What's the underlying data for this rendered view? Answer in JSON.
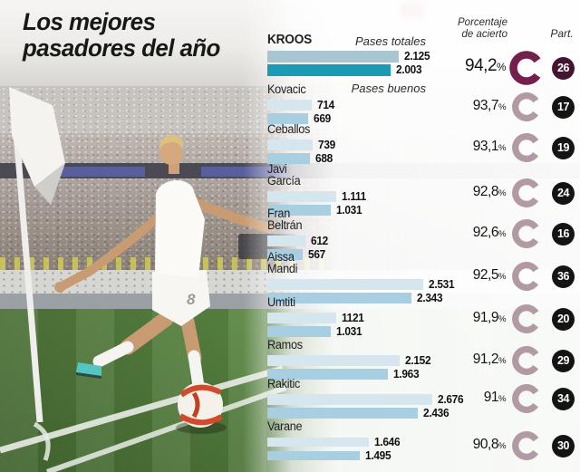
{
  "title": {
    "line1": "Los mejores",
    "line2": "pasadores del año"
  },
  "headers": {
    "pases_totales": "Pases totales",
    "pases_buenos": "Pases buenos",
    "porcentaje_line1": "Porcentaje",
    "porcentaje_line2": "de acierto",
    "part": "Part."
  },
  "colors": {
    "bar_total": "#d5e6ee",
    "bar_good": "#a7cfe1",
    "bar_total_top": "#a8c6d1",
    "bar_good_top": "#1b9ab6",
    "donut": "#b29aa5",
    "donut_top": "#73204d",
    "badge": "#151414",
    "badge_top": "#451430"
  },
  "chart_data": {
    "type": "bar",
    "orientation": "horizontal",
    "series_labels": [
      "Pases totales",
      "Pases buenos"
    ],
    "percent_sign": "%",
    "players": [
      {
        "name_lines": [
          "KROOS"
        ],
        "total": 2125,
        "total_label": "2.125",
        "good": 2003,
        "good_label": "2.003",
        "accuracy_label": "94,2",
        "matches": "26",
        "highlight": true
      },
      {
        "name_lines": [
          "Kovacic"
        ],
        "total": 714,
        "total_label": "714",
        "good": 669,
        "good_label": "669",
        "accuracy_label": "93,7",
        "matches": "17",
        "highlight": false
      },
      {
        "name_lines": [
          "Ceballos"
        ],
        "total": 739,
        "total_label": "739",
        "good": 688,
        "good_label": "688",
        "accuracy_label": "93,1",
        "matches": "19",
        "highlight": false
      },
      {
        "name_lines": [
          "Javi",
          "García"
        ],
        "total": 1111,
        "total_label": "1.111",
        "good": 1031,
        "good_label": "1.031",
        "accuracy_label": "92,8",
        "matches": "24",
        "highlight": false
      },
      {
        "name_lines": [
          "Fran",
          "Beltrán"
        ],
        "total": 612,
        "total_label": "612",
        "good": 567,
        "good_label": "567",
        "accuracy_label": "92,6",
        "matches": "16",
        "highlight": false
      },
      {
        "name_lines": [
          "Aissa",
          "Mandi"
        ],
        "total": 2531,
        "total_label": "2.531",
        "good": 2343,
        "good_label": "2.343",
        "accuracy_label": "92,5",
        "matches": "36",
        "highlight": false
      },
      {
        "name_lines": [
          "Umtiti"
        ],
        "total": 1121,
        "total_label": "1121",
        "good": 1031,
        "good_label": "1.031",
        "accuracy_label": "91,9",
        "matches": "20",
        "highlight": false
      },
      {
        "name_lines": [
          "Ramos"
        ],
        "total": 2152,
        "total_label": "2.152",
        "good": 1963,
        "good_label": "1.963",
        "accuracy_label": "91,2",
        "matches": "29",
        "highlight": false
      },
      {
        "name_lines": [
          "Rakitic"
        ],
        "total": 2676,
        "total_label": "2.676",
        "good": 2436,
        "good_label": "2.436",
        "accuracy_label": "91",
        "matches": "34",
        "highlight": false
      },
      {
        "name_lines": [
          "Varane"
        ],
        "total": 1646,
        "total_label": "1.646",
        "good": 1495,
        "good_label": "1.495",
        "accuracy_label": "90,8",
        "matches": "30",
        "highlight": false
      }
    ]
  }
}
